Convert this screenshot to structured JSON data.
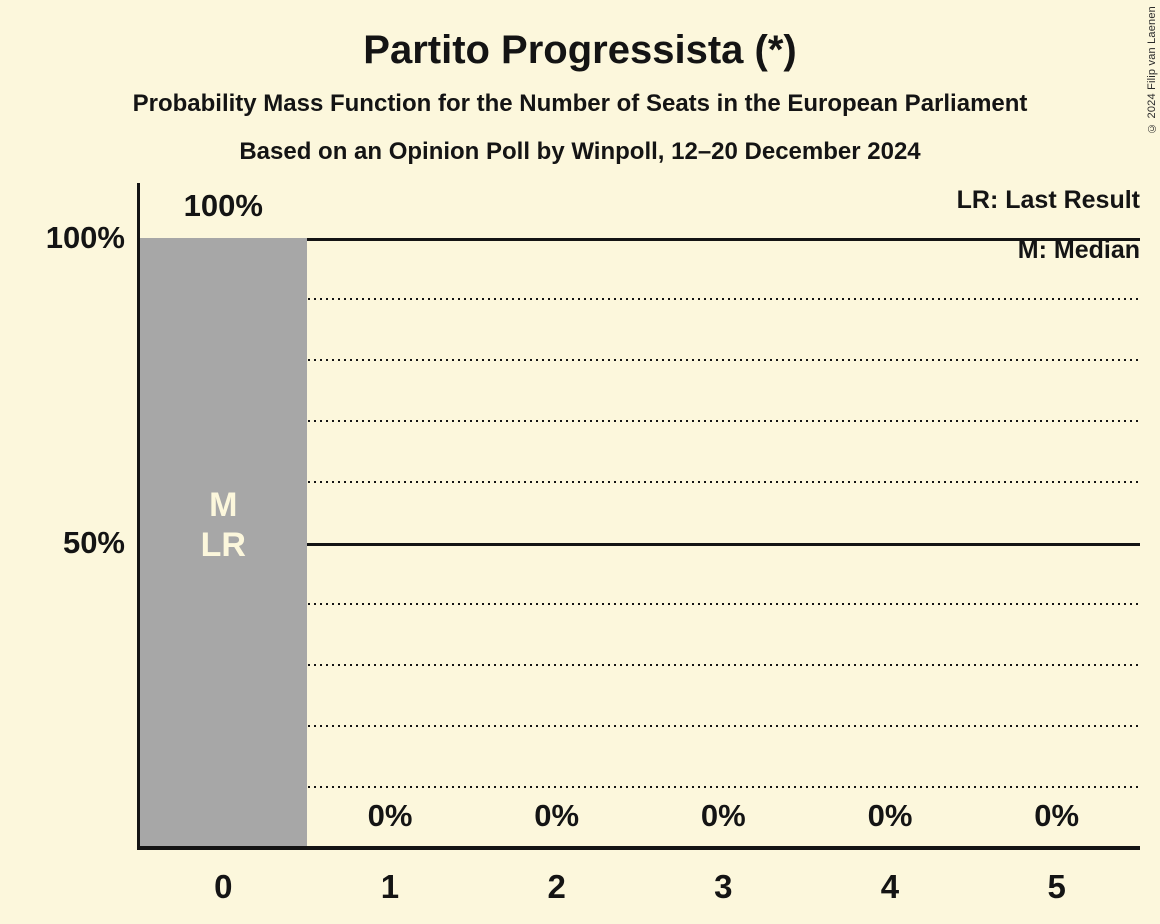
{
  "page": {
    "title": "Partito Progressista (*)",
    "subtitle": "Probability Mass Function for the Number of Seats in the European Parliament",
    "source_line": "Based on an Opinion Poll by Winpoll, 12–20 December 2024",
    "copyright": "© 2024 Filip van Laenen"
  },
  "legend": {
    "last_result": "LR: Last Result",
    "median": "M: Median"
  },
  "colors": {
    "background": "#fcf7dc",
    "bar": "#a7a7a7",
    "text": "#141414",
    "bar_annotation_text": "#fcf7dc"
  },
  "chart_data": {
    "type": "bar",
    "title": "Partito Progressista (*)",
    "categories": [
      "0",
      "1",
      "2",
      "3",
      "4",
      "5"
    ],
    "values": [
      100,
      0,
      0,
      0,
      0,
      0
    ],
    "value_labels": [
      "100%",
      "0%",
      "0%",
      "0%",
      "0%",
      "0%"
    ],
    "ylim": [
      0,
      100
    ],
    "yticks": [
      {
        "value": 100,
        "label": "100%"
      },
      {
        "value": 50,
        "label": "50%"
      }
    ],
    "solid_gridlines": [
      100,
      50
    ],
    "dotted_gridlines": [
      90,
      80,
      70,
      60,
      40,
      30,
      20,
      10
    ],
    "grid": "horizontal",
    "legend_position": "top-right",
    "median_seats": "0",
    "last_result_seats": "0",
    "bar_annotations": [
      {
        "bar": "0",
        "key": "median-marker",
        "label": "M"
      },
      {
        "bar": "0",
        "key": "last-result-marker",
        "label": "LR"
      }
    ]
  }
}
